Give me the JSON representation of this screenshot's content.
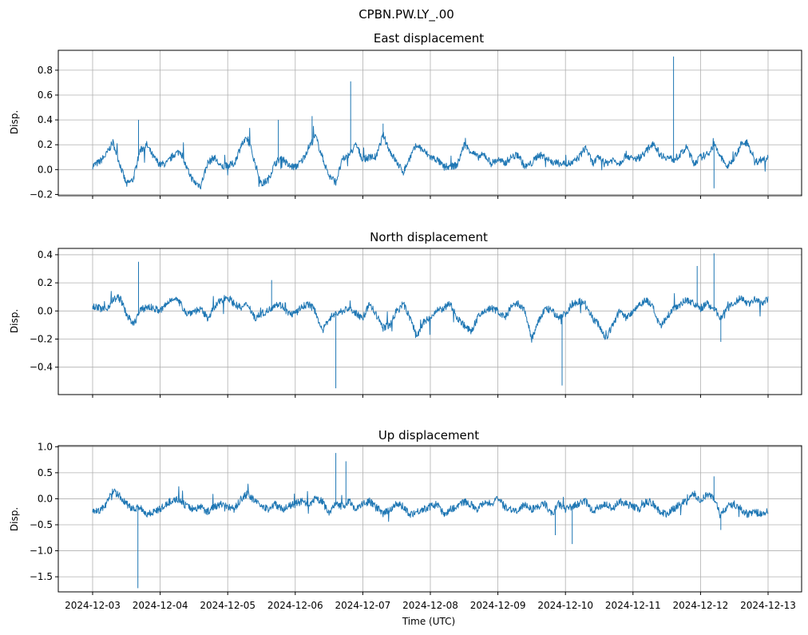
{
  "suptitle": "CPBN.PW.LY_.00",
  "xlabel": "Time (UTC)",
  "xticks": [
    "2024-12-03",
    "2024-12-04",
    "2024-12-05",
    "2024-12-06",
    "2024-12-07",
    "2024-12-08",
    "2024-12-09",
    "2024-12-10",
    "2024-12-11",
    "2024-12-12",
    "2024-12-13"
  ],
  "line_color": "#1f77b4",
  "chart_data": [
    {
      "type": "line",
      "title": "East displacement",
      "ylabel": "Disp.",
      "xlim": [
        0,
        10
      ],
      "ylim": [
        -0.21,
        0.96
      ],
      "yticks": [
        -0.2,
        0.0,
        0.2,
        0.4,
        0.6,
        0.8
      ],
      "ytick_labels": [
        "−0.2",
        "0.0",
        "0.2",
        "0.4",
        "0.6",
        "0.8"
      ],
      "grid": true,
      "x": [
        0,
        0.1,
        0.2,
        0.3,
        0.4,
        0.5,
        0.6,
        0.7,
        0.8,
        0.9,
        1.0,
        1.1,
        1.2,
        1.3,
        1.4,
        1.5,
        1.6,
        1.7,
        1.8,
        1.9,
        2.0,
        2.1,
        2.2,
        2.3,
        2.4,
        2.5,
        2.6,
        2.7,
        2.8,
        2.9,
        3.0,
        3.1,
        3.2,
        3.3,
        3.4,
        3.5,
        3.6,
        3.7,
        3.8,
        3.9,
        4.0,
        4.1,
        4.2,
        4.3,
        4.4,
        4.5,
        4.6,
        4.7,
        4.8,
        4.9,
        5.0,
        5.1,
        5.2,
        5.3,
        5.4,
        5.5,
        5.6,
        5.7,
        5.8,
        5.9,
        6.0,
        6.1,
        6.2,
        6.3,
        6.4,
        6.5,
        6.6,
        6.7,
        6.8,
        6.9,
        7.0,
        7.1,
        7.2,
        7.3,
        7.4,
        7.5,
        7.6,
        7.7,
        7.8,
        7.9,
        8.0,
        8.1,
        8.2,
        8.3,
        8.4,
        8.5,
        8.6,
        8.7,
        8.8,
        8.9,
        9.0,
        9.1,
        9.2,
        9.3,
        9.4,
        9.5,
        9.6,
        9.7,
        9.8,
        9.9,
        10.0
      ],
      "y": [
        0.03,
        0.06,
        0.12,
        0.22,
        0.05,
        -0.12,
        -0.08,
        0.15,
        0.2,
        0.1,
        0.04,
        0.05,
        0.12,
        0.15,
        0.0,
        -0.1,
        -0.13,
        0.05,
        0.1,
        0.02,
        0.03,
        0.05,
        0.2,
        0.25,
        0.06,
        -0.12,
        -0.08,
        0.05,
        0.1,
        0.03,
        0.02,
        0.07,
        0.18,
        0.27,
        0.1,
        -0.05,
        -0.1,
        0.08,
        0.12,
        0.2,
        0.08,
        0.1,
        0.1,
        0.28,
        0.15,
        0.06,
        -0.02,
        0.1,
        0.2,
        0.15,
        0.1,
        0.08,
        0.02,
        0.02,
        0.04,
        0.2,
        0.15,
        0.1,
        0.12,
        0.05,
        0.08,
        0.05,
        0.1,
        0.12,
        0.02,
        0.05,
        0.12,
        0.1,
        0.06,
        0.05,
        0.05,
        0.05,
        0.1,
        0.18,
        0.05,
        0.1,
        0.05,
        0.08,
        0.05,
        0.12,
        0.08,
        0.1,
        0.15,
        0.22,
        0.12,
        0.1,
        0.08,
        0.12,
        0.18,
        0.05,
        0.1,
        0.12,
        0.2,
        0.1,
        0.02,
        0.1,
        0.2,
        0.22,
        0.06,
        0.08,
        0.1
      ],
      "spikes": [
        [
          0.68,
          0.4
        ],
        [
          2.75,
          0.4
        ],
        [
          3.25,
          0.43
        ],
        [
          3.82,
          0.71
        ],
        [
          4.3,
          0.37
        ],
        [
          8.6,
          0.91
        ],
        [
          9.2,
          -0.15
        ]
      ]
    },
    {
      "type": "line",
      "title": "North displacement",
      "ylabel": "Disp.",
      "xlim": [
        0,
        10
      ],
      "ylim": [
        -0.595,
        0.445
      ],
      "yticks": [
        -0.4,
        -0.2,
        0.0,
        0.2,
        0.4
      ],
      "ytick_labels": [
        "−0.4",
        "−0.2",
        "0.0",
        "0.2",
        "0.4"
      ],
      "grid": true,
      "x": [
        0,
        0.1,
        0.2,
        0.3,
        0.4,
        0.5,
        0.6,
        0.7,
        0.8,
        0.9,
        1.0,
        1.1,
        1.2,
        1.3,
        1.4,
        1.5,
        1.6,
        1.7,
        1.8,
        1.9,
        2.0,
        2.1,
        2.2,
        2.3,
        2.4,
        2.5,
        2.6,
        2.7,
        2.8,
        2.9,
        3.0,
        3.1,
        3.2,
        3.3,
        3.4,
        3.5,
        3.6,
        3.7,
        3.8,
        3.9,
        4.0,
        4.1,
        4.2,
        4.3,
        4.4,
        4.5,
        4.6,
        4.7,
        4.8,
        4.9,
        5.0,
        5.1,
        5.2,
        5.3,
        5.4,
        5.5,
        5.6,
        5.7,
        5.8,
        5.9,
        6.0,
        6.1,
        6.2,
        6.3,
        6.4,
        6.5,
        6.6,
        6.7,
        6.8,
        6.9,
        7.0,
        7.1,
        7.2,
        7.3,
        7.4,
        7.5,
        7.6,
        7.7,
        7.8,
        7.9,
        8.0,
        8.1,
        8.2,
        8.3,
        8.4,
        8.5,
        8.6,
        8.7,
        8.8,
        8.9,
        9.0,
        9.1,
        9.2,
        9.3,
        9.4,
        9.5,
        9.6,
        9.7,
        9.8,
        9.9,
        10.0
      ],
      "y": [
        0.04,
        0.02,
        0.01,
        0.08,
        0.1,
        -0.02,
        -0.1,
        0.0,
        0.03,
        0.02,
        0.0,
        0.05,
        0.1,
        0.05,
        -0.02,
        0.0,
        0.01,
        -0.05,
        0.02,
        0.08,
        0.1,
        0.05,
        0.02,
        0.05,
        -0.05,
        -0.02,
        0.0,
        0.05,
        0.04,
        -0.02,
        -0.02,
        0.03,
        0.05,
        0.0,
        -0.15,
        -0.05,
        -0.02,
        0.0,
        0.02,
        -0.02,
        -0.05,
        0.05,
        -0.03,
        -0.12,
        -0.1,
        0.0,
        0.05,
        -0.05,
        -0.18,
        -0.08,
        -0.05,
        0.0,
        0.02,
        0.05,
        -0.05,
        -0.1,
        -0.15,
        -0.05,
        0.0,
        0.02,
        0.0,
        -0.05,
        0.03,
        0.05,
        0.0,
        -0.2,
        -0.08,
        0.02,
        0.0,
        -0.05,
        -0.02,
        0.05,
        0.07,
        0.05,
        -0.05,
        -0.1,
        -0.2,
        -0.1,
        0.0,
        -0.05,
        0.0,
        0.05,
        0.08,
        0.02,
        -0.12,
        -0.05,
        0.02,
        0.05,
        0.08,
        0.05,
        0.02,
        0.05,
        0.02,
        -0.05,
        0.02,
        0.05,
        0.1,
        0.05,
        0.08,
        0.06,
        0.08
      ],
      "spikes": [
        [
          0.68,
          0.35
        ],
        [
          2.65,
          0.22
        ],
        [
          3.6,
          -0.55
        ],
        [
          6.95,
          -0.53
        ],
        [
          8.95,
          0.32
        ],
        [
          9.2,
          0.41
        ],
        [
          9.3,
          -0.22
        ]
      ]
    },
    {
      "type": "line",
      "title": "Up displacement",
      "ylabel": "Disp.",
      "xlim": [
        0,
        10
      ],
      "ylim": [
        -1.79,
        1.02
      ],
      "yticks": [
        -1.5,
        -1.0,
        -0.5,
        0.0,
        0.5,
        1.0
      ],
      "ytick_labels": [
        "−1.5",
        "−1.0",
        "−0.5",
        "0.0",
        "0.5",
        "1.0"
      ],
      "grid": true,
      "x": [
        0,
        0.1,
        0.2,
        0.3,
        0.4,
        0.5,
        0.6,
        0.7,
        0.8,
        0.9,
        1.0,
        1.1,
        1.2,
        1.3,
        1.4,
        1.5,
        1.6,
        1.7,
        1.8,
        1.9,
        2.0,
        2.1,
        2.2,
        2.3,
        2.4,
        2.5,
        2.6,
        2.7,
        2.8,
        2.9,
        3.0,
        3.1,
        3.2,
        3.3,
        3.4,
        3.5,
        3.6,
        3.7,
        3.8,
        3.9,
        4.0,
        4.1,
        4.2,
        4.3,
        4.4,
        4.5,
        4.6,
        4.7,
        4.8,
        4.9,
        5.0,
        5.1,
        5.2,
        5.3,
        5.4,
        5.5,
        5.6,
        5.7,
        5.8,
        5.9,
        6.0,
        6.1,
        6.2,
        6.3,
        6.4,
        6.5,
        6.6,
        6.7,
        6.8,
        6.9,
        7.0,
        7.1,
        7.2,
        7.3,
        7.4,
        7.5,
        7.6,
        7.7,
        7.8,
        7.9,
        8.0,
        8.1,
        8.2,
        8.3,
        8.4,
        8.5,
        8.6,
        8.7,
        8.8,
        8.9,
        9.0,
        9.1,
        9.2,
        9.3,
        9.4,
        9.5,
        9.6,
        9.7,
        9.8,
        9.9,
        10.0
      ],
      "y": [
        -0.2,
        -0.25,
        -0.1,
        0.15,
        0.05,
        -0.1,
        -0.2,
        -0.15,
        -0.3,
        -0.25,
        -0.2,
        -0.1,
        0.0,
        -0.05,
        -0.15,
        -0.2,
        -0.15,
        -0.25,
        -0.15,
        -0.1,
        -0.15,
        -0.2,
        0.0,
        0.1,
        -0.05,
        -0.15,
        -0.2,
        -0.1,
        -0.2,
        -0.15,
        -0.1,
        -0.05,
        -0.15,
        0.0,
        -0.05,
        -0.3,
        -0.1,
        -0.15,
        -0.05,
        -0.2,
        -0.1,
        -0.05,
        -0.15,
        -0.3,
        -0.2,
        -0.1,
        -0.15,
        -0.3,
        -0.25,
        -0.2,
        -0.15,
        -0.1,
        -0.3,
        -0.2,
        -0.15,
        -0.05,
        -0.1,
        -0.2,
        -0.05,
        -0.1,
        0.0,
        -0.15,
        -0.2,
        -0.25,
        -0.1,
        -0.2,
        -0.15,
        -0.1,
        -0.3,
        -0.1,
        -0.2,
        -0.15,
        -0.1,
        -0.05,
        -0.25,
        -0.15,
        -0.1,
        -0.2,
        -0.05,
        -0.1,
        -0.15,
        -0.2,
        -0.05,
        -0.1,
        -0.25,
        -0.3,
        -0.2,
        -0.1,
        -0.05,
        0.1,
        -0.05,
        0.1,
        0.0,
        -0.3,
        -0.15,
        -0.1,
        -0.2,
        -0.3,
        -0.25,
        -0.3,
        -0.25
      ],
      "spikes": [
        [
          0.67,
          -1.72
        ],
        [
          3.6,
          0.88
        ],
        [
          3.75,
          0.72
        ],
        [
          6.85,
          -0.7
        ],
        [
          7.1,
          -0.87
        ],
        [
          9.2,
          0.43
        ],
        [
          9.3,
          -0.6
        ]
      ]
    }
  ]
}
